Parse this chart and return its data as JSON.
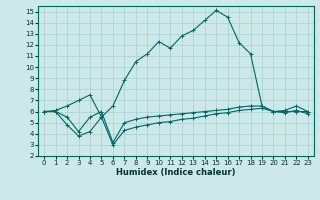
{
  "xlabel": "Humidex (Indice chaleur)",
  "background_color": "#cce8e8",
  "grid_color": "#aacfcf",
  "line_color": "#006666",
  "xlim": [
    -0.5,
    23.5
  ],
  "ylim": [
    2,
    15.5
  ],
  "xticks": [
    0,
    1,
    2,
    3,
    4,
    5,
    6,
    7,
    8,
    9,
    10,
    11,
    12,
    13,
    14,
    15,
    16,
    17,
    18,
    19,
    20,
    21,
    22,
    23
  ],
  "yticks": [
    2,
    3,
    4,
    5,
    6,
    7,
    8,
    9,
    10,
    11,
    12,
    13,
    14,
    15
  ],
  "series": [
    {
      "x": [
        0,
        1,
        2,
        3,
        4,
        5,
        6,
        7,
        8,
        9,
        10,
        11,
        12,
        13,
        14,
        15,
        16,
        17,
        18,
        19,
        20,
        21,
        22,
        23
      ],
      "y": [
        6,
        6.1,
        6.5,
        7.0,
        7.5,
        5.5,
        6.5,
        8.8,
        10.5,
        11.2,
        12.3,
        11.7,
        12.8,
        13.3,
        14.2,
        15.1,
        14.5,
        12.2,
        11.2,
        6.5,
        6.0,
        6.1,
        6.5,
        6.0
      ]
    },
    {
      "x": [
        0,
        1,
        2,
        3,
        4,
        5,
        6,
        7,
        8,
        9,
        10,
        11,
        12,
        13,
        14,
        15,
        16,
        17,
        18,
        19,
        20,
        21,
        22,
        23
      ],
      "y": [
        6.0,
        6.0,
        5.5,
        4.2,
        5.5,
        6.0,
        3.2,
        5.0,
        5.3,
        5.5,
        5.6,
        5.7,
        5.8,
        5.9,
        6.0,
        6.1,
        6.2,
        6.4,
        6.5,
        6.5,
        6.0,
        6.0,
        6.0,
        6.0
      ]
    },
    {
      "x": [
        0,
        1,
        2,
        3,
        4,
        5,
        6,
        7,
        8,
        9,
        10,
        11,
        12,
        13,
        14,
        15,
        16,
        17,
        18,
        19,
        20,
        21,
        22,
        23
      ],
      "y": [
        6.0,
        6.0,
        4.8,
        3.8,
        4.2,
        5.5,
        3.0,
        4.3,
        4.6,
        4.8,
        5.0,
        5.1,
        5.3,
        5.4,
        5.6,
        5.8,
        5.9,
        6.1,
        6.2,
        6.3,
        6.0,
        5.9,
        6.1,
        5.8
      ]
    }
  ]
}
